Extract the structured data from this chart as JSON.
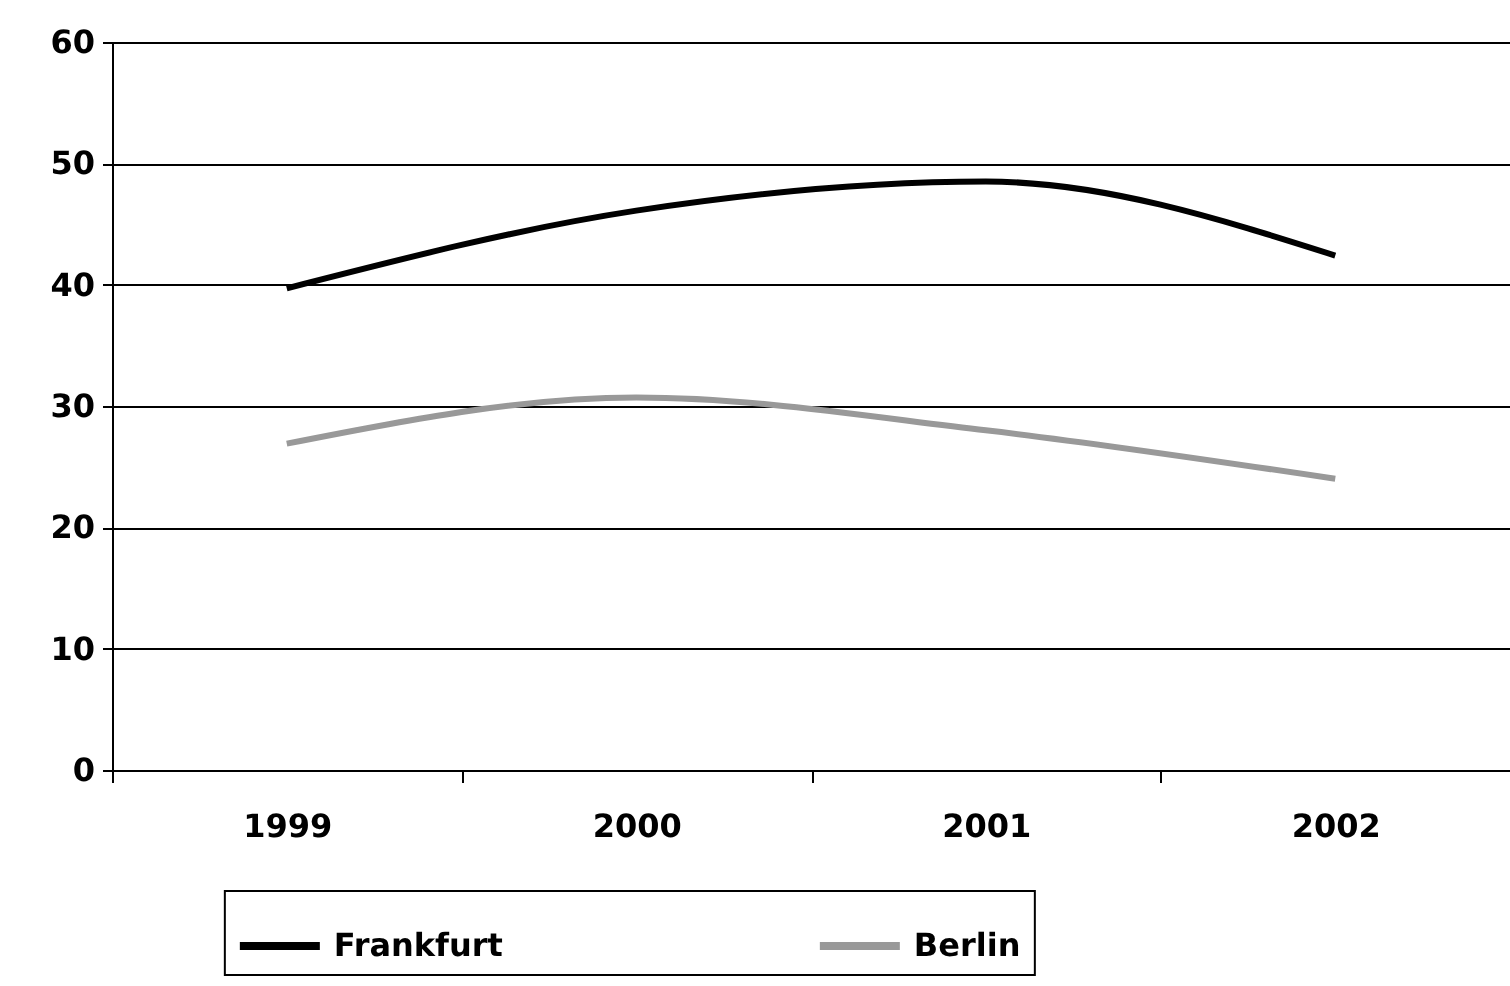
{
  "chart_data": {
    "type": "line",
    "categories": [
      "1999",
      "2000",
      "2001",
      "2002"
    ],
    "series": [
      {
        "name": "Frankfurt",
        "color": "#000000",
        "values": [
          39.7,
          46.1,
          48.5,
          42.4
        ]
      },
      {
        "name": "Berlin",
        "color": "#999999",
        "values": [
          26.9,
          30.7,
          28.0,
          24.0
        ]
      }
    ],
    "ylim": [
      0,
      60
    ],
    "yticks": [
      0,
      10,
      20,
      30,
      40,
      50,
      60
    ],
    "grid": "y",
    "legend": "bottom",
    "line_style": "solid"
  }
}
